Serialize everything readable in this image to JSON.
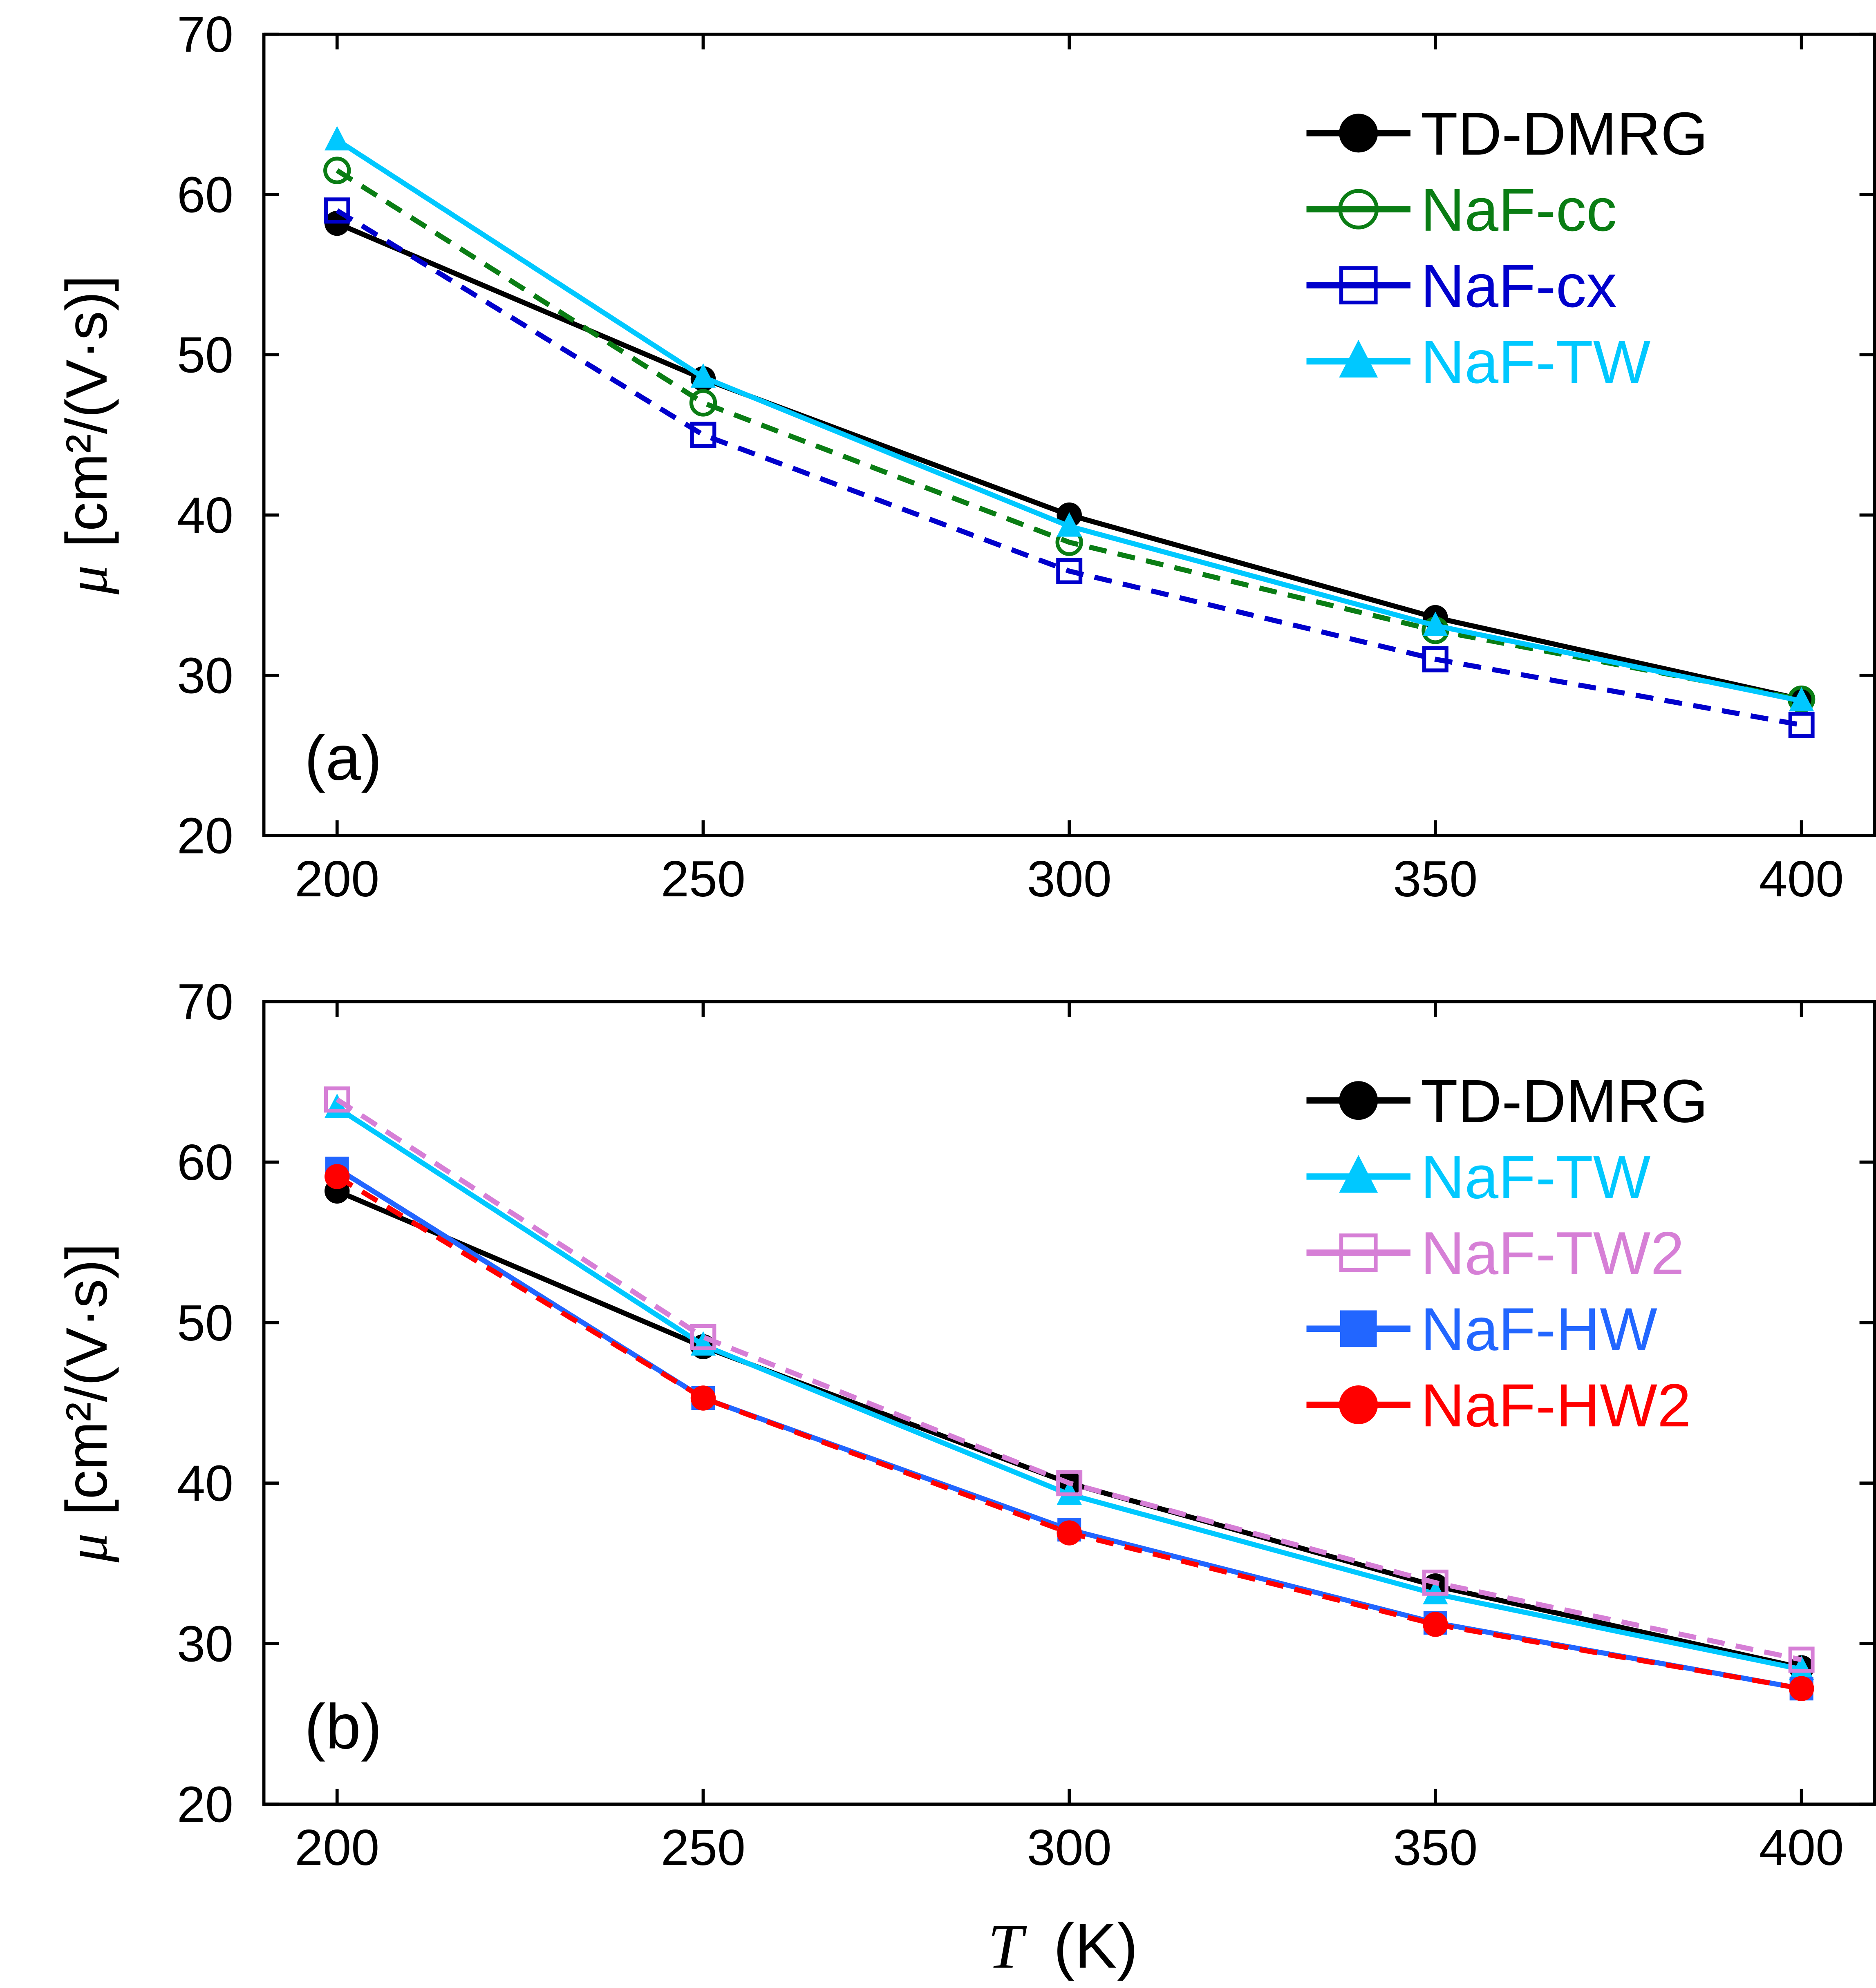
{
  "chart_data": [
    {
      "type": "line",
      "panel_label": "(a)",
      "xlabel": "",
      "ylabel_symbol": "μ",
      "ylabel_units": "[cm²/(V·s)]",
      "xlim": [
        190,
        410
      ],
      "ylim": [
        20,
        70
      ],
      "xticks": [
        "200",
        "250",
        "300",
        "350",
        "400"
      ],
      "yticks": [
        "20",
        "30",
        "40",
        "50",
        "60",
        "70"
      ],
      "grid": false,
      "legend_position": "top-right",
      "x": [
        200,
        250,
        300,
        350,
        400
      ],
      "series": [
        {
          "name": "TD-DMRG",
          "color": "#000000",
          "marker": "filled-circle",
          "dash": false,
          "values": [
            58.2,
            48.5,
            40.0,
            33.6,
            28.5
          ]
        },
        {
          "name": "NaF-cc",
          "color": "#0a7d14",
          "marker": "open-circle",
          "dash": true,
          "values": [
            61.5,
            47.0,
            38.3,
            32.8,
            28.5
          ]
        },
        {
          "name": "NaF-cx",
          "color": "#0000cc",
          "marker": "open-square",
          "dash": true,
          "values": [
            59.0,
            45.0,
            36.5,
            31.0,
            26.9
          ]
        },
        {
          "name": "NaF-TW",
          "color": "#00c8ff",
          "marker": "filled-triangle",
          "dash": false,
          "values": [
            63.4,
            48.6,
            39.3,
            33.1,
            28.4
          ]
        }
      ]
    },
    {
      "type": "line",
      "panel_label": "(b)",
      "xlabel_symbol": "T",
      "xlabel_units": "(K)",
      "ylabel_symbol": "μ",
      "ylabel_units": "[cm²/(V·s)]",
      "xlim": [
        190,
        410
      ],
      "ylim": [
        20,
        70
      ],
      "xticks": [
        "200",
        "250",
        "300",
        "350",
        "400"
      ],
      "yticks": [
        "20",
        "30",
        "40",
        "50",
        "60",
        "70"
      ],
      "grid": false,
      "legend_position": "top-right",
      "x": [
        200,
        250,
        300,
        350,
        400
      ],
      "series": [
        {
          "name": "TD-DMRG",
          "color": "#000000",
          "marker": "filled-circle",
          "dash": false,
          "values": [
            58.2,
            48.5,
            40.0,
            33.6,
            28.5
          ]
        },
        {
          "name": "NaF-TW",
          "color": "#00c8ff",
          "marker": "filled-triangle",
          "dash": false,
          "values": [
            63.4,
            48.6,
            39.3,
            33.1,
            28.4
          ]
        },
        {
          "name": "NaF-TW2",
          "color": "#d67fd6",
          "marker": "open-square",
          "dash": true,
          "values": [
            63.9,
            49.1,
            40.0,
            33.8,
            29.0
          ]
        },
        {
          "name": "NaF-HW",
          "color": "#2266ff",
          "marker": "filled-square",
          "dash": false,
          "values": [
            59.6,
            45.3,
            37.1,
            31.3,
            27.2
          ]
        },
        {
          "name": "NaF-HW2",
          "color": "#ff0000",
          "marker": "filled-circle",
          "dash": true,
          "values": [
            59.1,
            45.3,
            36.9,
            31.2,
            27.2
          ]
        }
      ]
    }
  ]
}
